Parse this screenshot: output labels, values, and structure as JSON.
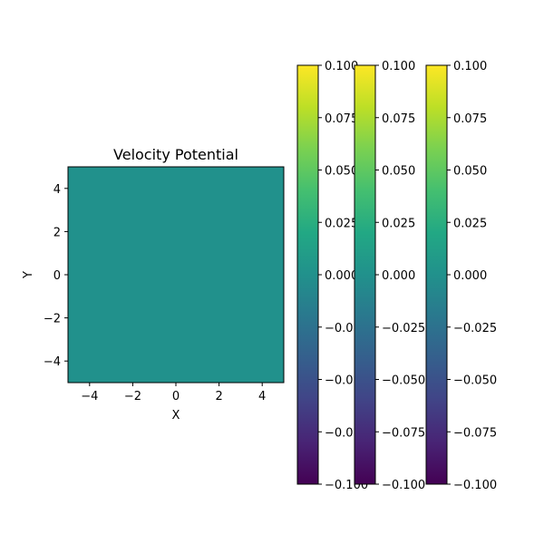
{
  "chart_data": {
    "type": "heatmap",
    "title": "Velocity Potential",
    "xlabel": "X",
    "ylabel": "Y",
    "xlim": [
      -5,
      5
    ],
    "ylim": [
      -5,
      5
    ],
    "xticks": [
      -4,
      -2,
      0,
      2,
      4
    ],
    "yticks": [
      -4,
      -2,
      0,
      2,
      4
    ],
    "field_value": 0.0,
    "fill_color": "#21918c",
    "colormap": "viridis",
    "colorbars": [
      {
        "vmin": -0.1,
        "vmax": 0.1,
        "ticks": [
          0.1,
          0.075,
          0.05,
          0.025,
          0.0,
          -0.025,
          -0.05,
          -0.075,
          -0.1
        ]
      },
      {
        "vmin": -0.1,
        "vmax": 0.1,
        "ticks": [
          0.1,
          0.075,
          0.05,
          0.025,
          0.0,
          -0.025,
          -0.05,
          -0.075,
          -0.1
        ]
      },
      {
        "vmin": -0.1,
        "vmax": 0.1,
        "ticks": [
          0.1,
          0.075,
          0.05,
          0.025,
          0.0,
          -0.025,
          -0.05,
          -0.075,
          -0.1
        ]
      }
    ]
  }
}
